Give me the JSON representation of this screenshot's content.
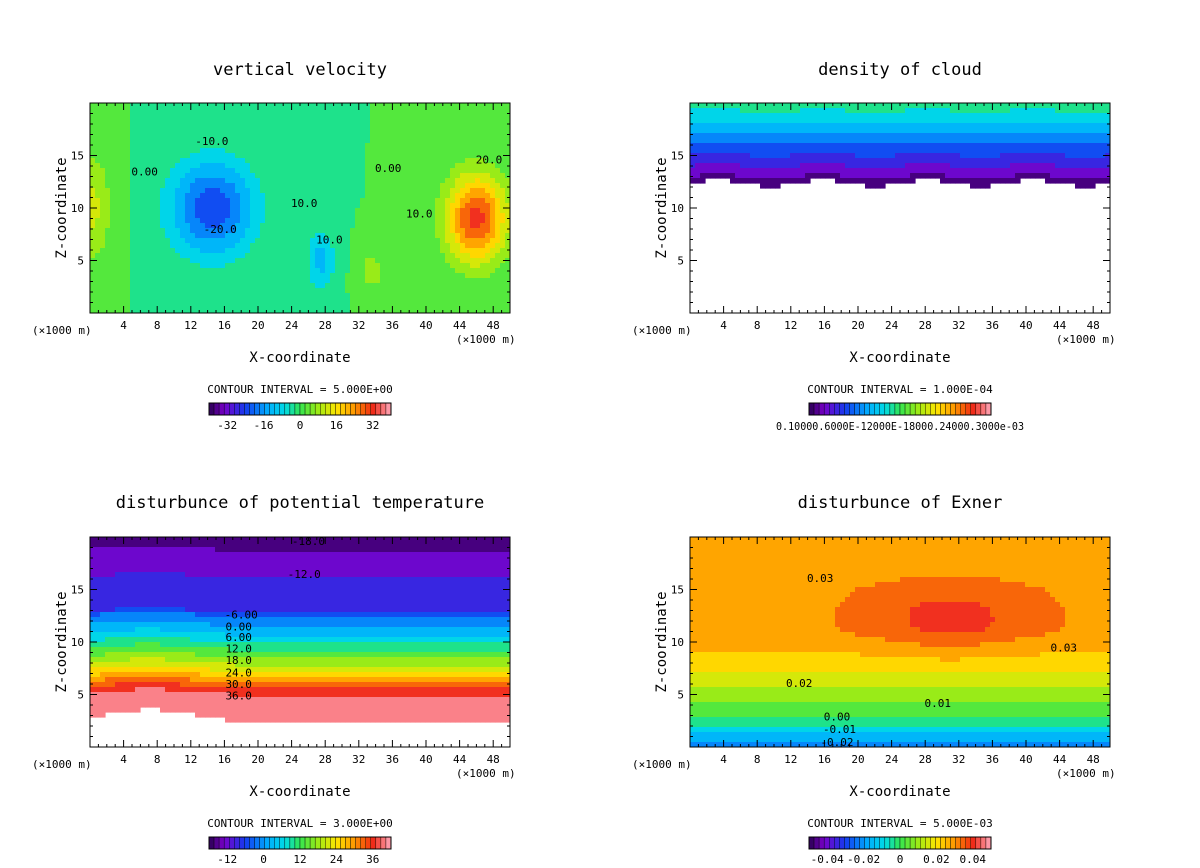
{
  "figure": {
    "unit_label": "(×1000 m)"
  },
  "chart_data": [
    {
      "type": "heatmap",
      "title": "vertical velocity",
      "xlabel": "X-coordinate",
      "ylabel": "Z-coordinate",
      "x_unit": "(×1000 m)",
      "xlim": [
        0,
        50
      ],
      "ylim": [
        0,
        20
      ],
      "xticks": [
        4,
        8,
        12,
        16,
        20,
        24,
        28,
        32,
        36,
        40,
        44,
        48
      ],
      "yticks": [
        5,
        10,
        15
      ],
      "contour_interval_text": "CONTOUR INTERVAL = 5.000E+00",
      "colorbar": {
        "min": -40,
        "max": 40,
        "ticks": [
          "-32",
          "-16",
          "0",
          "16",
          "32"
        ]
      },
      "field": {
        "background": 0,
        "blobs": [
          {
            "x": 14.5,
            "z": 10,
            "sx": 5,
            "sz": 4.5,
            "amp": -24
          },
          {
            "x": 27.5,
            "z": 5,
            "sx": 1.6,
            "sz": 2.8,
            "amp": -12
          },
          {
            "x": 46,
            "z": 9,
            "sx": 3.6,
            "sz": 4.2,
            "amp": 32
          },
          {
            "x": 0,
            "z": 10,
            "sx": 2.5,
            "sz": 5,
            "amp": 12
          },
          {
            "x": 33.5,
            "z": 4,
            "sx": 1.5,
            "sz": 2,
            "amp": 8
          }
        ]
      },
      "contour_labels": [
        {
          "text": "-10.0",
          "x": 14.5,
          "z": 16.4
        },
        {
          "text": "-20.0",
          "x": 15.5,
          "z": 8.0
        },
        {
          "text": "10.0",
          "x": 25.5,
          "z": 10.5
        },
        {
          "text": "10.0",
          "x": 28.5,
          "z": 7.0
        },
        {
          "text": "0.00",
          "x": 6.5,
          "z": 13.5
        },
        {
          "text": "0.00",
          "x": 35.5,
          "z": 13.8
        },
        {
          "text": "10.0",
          "x": 39.2,
          "z": 9.5
        },
        {
          "text": "20.0",
          "x": 47.5,
          "z": 14.6
        }
      ]
    },
    {
      "type": "heatmap",
      "title": "density of cloud",
      "xlabel": "X-coordinate",
      "ylabel": "Z-coordinate",
      "x_unit": "(×1000 m)",
      "xlim": [
        0,
        50
      ],
      "ylim": [
        0,
        20
      ],
      "xticks": [
        4,
        8,
        12,
        16,
        20,
        24,
        28,
        32,
        36,
        40,
        44,
        48
      ],
      "yticks": [
        5,
        10,
        15
      ],
      "contour_interval_text": "CONTOUR INTERVAL = 1.000E-04",
      "colorbar": {
        "min": 0,
        "max": 0.001,
        "ticks_text": "0.10000.6000E-12000E-18000.24000.3000e-03"
      },
      "cloud": {
        "base_z": 12.4,
        "top_z": 20,
        "base_value": 3e-05,
        "top_value": 0.00048
      }
    },
    {
      "type": "heatmap",
      "title": "disturbunce of potential temperature",
      "xlabel": "X-coordinate",
      "ylabel": "Z-coordinate",
      "x_unit": "(×1000 m)",
      "xlim": [
        0,
        50
      ],
      "ylim": [
        0,
        20
      ],
      "xticks": [
        4,
        8,
        12,
        16,
        20,
        24,
        28,
        32,
        36,
        40,
        44,
        48
      ],
      "yticks": [
        5,
        10,
        15
      ],
      "contour_interval_text": "CONTOUR INTERVAL = 3.000E+00",
      "colorbar": {
        "min": -18,
        "max": 42,
        "ticks": [
          "-12",
          "0",
          "12",
          "24",
          "36"
        ]
      },
      "profile": [
        {
          "z": 0,
          "v": 42
        },
        {
          "z": 3.6,
          "v": 42
        },
        {
          "z": 5,
          "v": 38
        },
        {
          "z": 7.5,
          "v": 21
        },
        {
          "z": 10.5,
          "v": 5
        },
        {
          "z": 12.3,
          "v": -3
        },
        {
          "z": 12.8,
          "v": -8
        },
        {
          "z": 15,
          "v": -9.5
        },
        {
          "z": 17.5,
          "v": -12
        },
        {
          "z": 20,
          "v": -17
        }
      ],
      "contour_labels": [
        {
          "text": "-18.0",
          "x": 26,
          "z": 19.6
        },
        {
          "text": "-12.0",
          "x": 25.5,
          "z": 16.5
        },
        {
          "text": "-6.00",
          "x": 18,
          "z": 12.6
        },
        {
          "text": "0.00",
          "x": 17.7,
          "z": 11.5
        },
        {
          "text": "6.00",
          "x": 17.7,
          "z": 10.5
        },
        {
          "text": "12.0",
          "x": 17.7,
          "z": 9.4
        },
        {
          "text": "18.0",
          "x": 17.7,
          "z": 8.3
        },
        {
          "text": "24.0",
          "x": 17.7,
          "z": 7.1
        },
        {
          "text": "30.0",
          "x": 17.7,
          "z": 6.0
        },
        {
          "text": "36.0",
          "x": 17.7,
          "z": 4.9
        }
      ]
    },
    {
      "type": "heatmap",
      "title": "disturbunce of Exner",
      "xlabel": "X-coordinate",
      "ylabel": "Z-coordinate",
      "x_unit": "(×1000 m)",
      "xlim": [
        0,
        50
      ],
      "ylim": [
        0,
        20
      ],
      "xticks": [
        4,
        8,
        12,
        16,
        20,
        24,
        28,
        32,
        36,
        40,
        44,
        48
      ],
      "yticks": [
        5,
        10,
        15
      ],
      "contour_interval_text": "CONTOUR INTERVAL = 5.000E-03",
      "colorbar": {
        "min": -0.05,
        "max": 0.05,
        "ticks": [
          "-0.04",
          "-0.02",
          "0",
          "0.02",
          "0.04"
        ]
      },
      "profile": [
        {
          "z": 0,
          "v": -0.025
        },
        {
          "z": 2,
          "v": -0.005
        },
        {
          "z": 5,
          "v": 0.01
        },
        {
          "z": 8,
          "v": 0.022
        },
        {
          "z": 11,
          "v": 0.03
        },
        {
          "z": 15,
          "v": 0.03
        },
        {
          "z": 20,
          "v": 0.027
        }
      ],
      "blob": {
        "x": 31,
        "z": 12.3,
        "sx": 9.5,
        "sz": 3.2,
        "amp": 0.01
      },
      "contour_labels": [
        {
          "text": "0.03",
          "x": 15.5,
          "z": 16.1
        },
        {
          "text": "0.03",
          "x": 44.5,
          "z": 9.5
        },
        {
          "text": "0.02",
          "x": 13,
          "z": 6.1
        },
        {
          "text": "0.01",
          "x": 29.5,
          "z": 4.2
        },
        {
          "text": "0.00",
          "x": 17.5,
          "z": 2.9
        },
        {
          "text": "-0.01",
          "x": 17.8,
          "z": 1.7
        },
        {
          "text": "-0.02",
          "x": 17.5,
          "z": 0.5
        }
      ]
    }
  ]
}
